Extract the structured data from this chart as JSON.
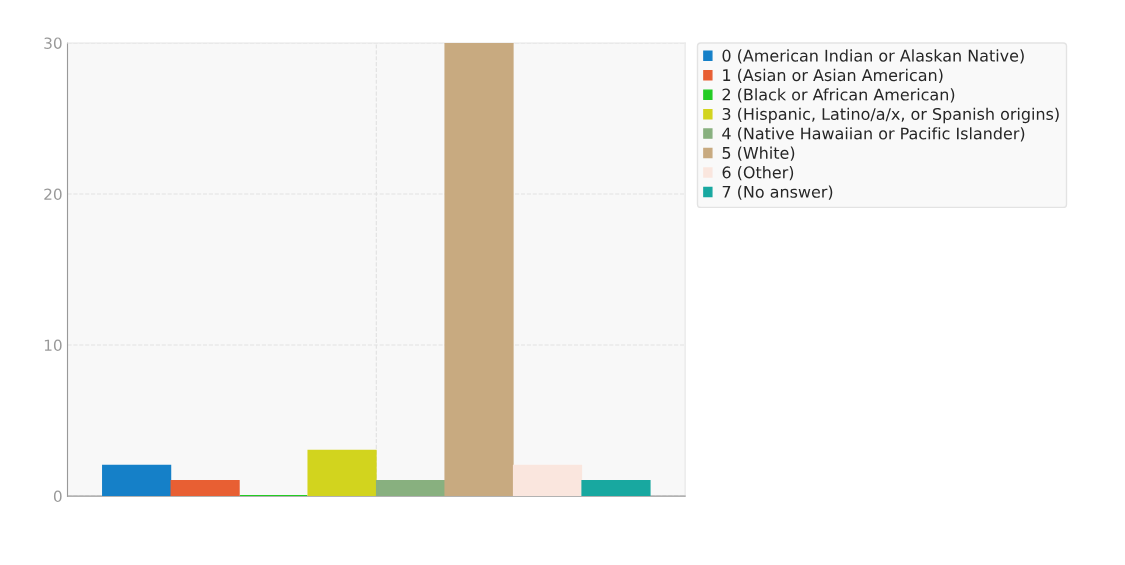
{
  "chart_data": {
    "type": "bar",
    "categories": [
      null
    ],
    "series": [
      {
        "name": "0 (American Indian or Alaskan Native)",
        "color": "#1580c8",
        "values": [
          2
        ]
      },
      {
        "name": "1 (Asian or Asian American)",
        "color": "#e85f33",
        "values": [
          1
        ]
      },
      {
        "name": "2 (Black or African American)",
        "color": "#22cc22",
        "values": [
          0
        ]
      },
      {
        "name": "3 (Hispanic, Latino/a/x, or Spanish origins)",
        "color": "#d2d41e",
        "values": [
          3
        ]
      },
      {
        "name": "4 (Native Hawaiian or Pacific Islander)",
        "color": "#88b07f",
        "values": [
          1
        ]
      },
      {
        "name": "5 (White)",
        "color": "#c8aa80",
        "values": [
          30
        ]
      },
      {
        "name": "6 (Other)",
        "color": "#fae6de",
        "values": [
          2
        ]
      },
      {
        "name": "7 (No answer)",
        "color": "#18a8a0",
        "values": [
          1
        ]
      }
    ],
    "ylim": [
      0,
      30
    ],
    "yticks": [
      0,
      10,
      20,
      30
    ],
    "grid": true,
    "legend": "right"
  }
}
